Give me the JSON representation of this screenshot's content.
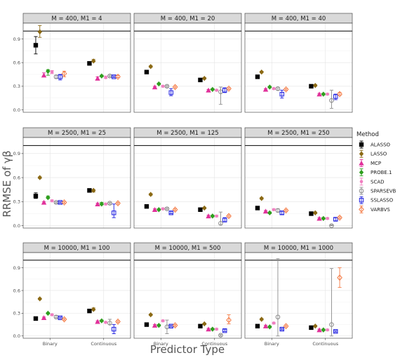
{
  "chart_data": {
    "type": "scatter",
    "subtype": "faceted point-range (point with error bars)",
    "xlabel": "Predictor Type",
    "ylabel": "RRMSE of γβ",
    "x_categories": [
      "Binary",
      "Continuous"
    ],
    "y_ticks": [
      "0.0",
      "0.3",
      "0.6",
      "0.9"
    ],
    "ylim": [
      -0.03,
      1.1
    ],
    "reference_line_y": 1.0,
    "grid": true,
    "legend_position": "right",
    "legend": {
      "title": "Method",
      "items": [
        {
          "name": "ALASSO",
          "color": "#000000",
          "shape": "square"
        },
        {
          "name": "LASSO",
          "color": "#8B6914",
          "shape": "diamond"
        },
        {
          "name": "MCP",
          "color": "#E0309A",
          "shape": "triangle"
        },
        {
          "name": "PROBE.1",
          "color": "#2E9E1E",
          "shape": "diamond"
        },
        {
          "name": "SCAD",
          "color": "#F07FC0",
          "shape": "dot"
        },
        {
          "name": "SPARSEVB",
          "color": "#8C8C8C",
          "shape": "circle-open"
        },
        {
          "name": "SSLASSO",
          "color": "#1C1CE0",
          "shape": "square-open"
        },
        {
          "name": "VARBVS",
          "color": "#F47A44",
          "shape": "diamond-open"
        }
      ]
    },
    "facets": [
      {
        "label": "M = 400, M1 = 4",
        "series": {
          "ALASSO": [
            [
              0.82,
              0.71,
              0.93
            ],
            [
              0.59,
              0.58,
              0.6
            ]
          ],
          "LASSO": [
            [
              0.99,
              0.92,
              1.07
            ],
            [
              0.62,
              0.61,
              0.64
            ]
          ],
          "MCP": [
            [
              0.44,
              0.42,
              0.47
            ],
            [
              0.4,
              0.38,
              0.42
            ]
          ],
          "PROBE.1": [
            [
              0.49,
              0.44,
              0.51
            ],
            [
              0.43,
              0.42,
              0.44
            ]
          ],
          "SCAD": [
            [
              0.48,
              0.46,
              0.5
            ],
            [
              0.41,
              0.4,
              0.43
            ]
          ],
          "SPARSEVB": [
            [
              0.42,
              0.4,
              0.44
            ],
            [
              0.43,
              0.42,
              0.44
            ]
          ],
          "SSLASSO": [
            [
              0.42,
              0.38,
              0.45
            ],
            [
              0.42,
              0.41,
              0.43
            ]
          ],
          "VARBVS": [
            [
              0.46,
              0.42,
              0.49
            ],
            [
              0.42,
              0.41,
              0.44
            ]
          ]
        }
      },
      {
        "label": "M = 400, M1 = 20",
        "series": {
          "ALASSO": [
            [
              0.48,
              0.46,
              0.5
            ],
            [
              0.38,
              0.37,
              0.39
            ]
          ],
          "LASSO": [
            [
              0.55,
              0.54,
              0.56
            ],
            [
              0.4,
              0.39,
              0.41
            ]
          ],
          "MCP": [
            [
              0.29,
              0.28,
              0.3
            ],
            [
              0.25,
              0.24,
              0.26
            ]
          ],
          "PROBE.1": [
            [
              0.33,
              0.32,
              0.34
            ],
            [
              0.26,
              0.25,
              0.27
            ]
          ],
          "SCAD": [
            [
              0.3,
              0.29,
              0.31
            ],
            [
              0.25,
              0.24,
              0.26
            ]
          ],
          "SPARSEVB": [
            [
              0.3,
              0.29,
              0.31
            ],
            [
              0.23,
              0.07,
              0.29
            ]
          ],
          "SSLASSO": [
            [
              0.22,
              0.18,
              0.27
            ],
            [
              0.25,
              0.22,
              0.28
            ]
          ],
          "VARBVS": [
            [
              0.29,
              0.28,
              0.3
            ],
            [
              0.27,
              0.26,
              0.28
            ]
          ]
        }
      },
      {
        "label": "M = 400, M1 = 40",
        "series": {
          "ALASSO": [
            [
              0.42,
              0.4,
              0.44
            ],
            [
              0.3,
              0.29,
              0.31
            ]
          ],
          "LASSO": [
            [
              0.48,
              0.47,
              0.49
            ],
            [
              0.31,
              0.3,
              0.32
            ]
          ],
          "MCP": [
            [
              0.26,
              0.25,
              0.27
            ],
            [
              0.2,
              0.19,
              0.21
            ]
          ],
          "PROBE.1": [
            [
              0.29,
              0.28,
              0.3
            ],
            [
              0.2,
              0.19,
              0.21
            ]
          ],
          "SCAD": [
            [
              0.27,
              0.26,
              0.28
            ],
            [
              0.2,
              0.19,
              0.21
            ]
          ],
          "SPARSEVB": [
            [
              0.27,
              0.25,
              0.28
            ],
            [
              0.12,
              0.02,
              0.25
            ]
          ],
          "SSLASSO": [
            [
              0.2,
              0.15,
              0.25
            ],
            [
              0.17,
              0.13,
              0.2
            ]
          ],
          "VARBVS": [
            [
              0.26,
              0.25,
              0.27
            ],
            [
              0.2,
              0.19,
              0.22
            ]
          ]
        }
      },
      {
        "label": "M = 2500, M1 = 25",
        "series": {
          "ALASSO": [
            [
              0.37,
              0.34,
              0.41
            ],
            [
              0.44,
              0.43,
              0.45
            ]
          ],
          "LASSO": [
            [
              0.6,
              0.59,
              0.61
            ],
            [
              0.44,
              0.42,
              0.45
            ]
          ],
          "MCP": [
            [
              0.29,
              0.28,
              0.3
            ],
            [
              0.27,
              0.26,
              0.28
            ]
          ],
          "PROBE.1": [
            [
              0.35,
              0.34,
              0.37
            ],
            [
              0.27,
              0.26,
              0.29
            ]
          ],
          "SCAD": [
            [
              0.31,
              0.3,
              0.32
            ],
            [
              0.27,
              0.26,
              0.28
            ]
          ],
          "SPARSEVB": [
            [
              0.29,
              0.28,
              0.3
            ],
            [
              0.28,
              0.27,
              0.29
            ]
          ],
          "SSLASSO": [
            [
              0.29,
              0.28,
              0.3
            ],
            [
              0.16,
              0.1,
              0.27
            ]
          ],
          "VARBVS": [
            [
              0.29,
              0.28,
              0.3
            ],
            [
              0.28,
              0.27,
              0.29
            ]
          ]
        }
      },
      {
        "label": "M = 2500, M1 = 125",
        "series": {
          "ALASSO": [
            [
              0.24,
              0.23,
              0.26
            ],
            [
              0.2,
              0.19,
              0.22
            ]
          ],
          "LASSO": [
            [
              0.39,
              0.38,
              0.4
            ],
            [
              0.22,
              0.21,
              0.23
            ]
          ],
          "MCP": [
            [
              0.2,
              0.19,
              0.21
            ],
            [
              0.12,
              0.11,
              0.13
            ]
          ],
          "PROBE.1": [
            [
              0.2,
              0.19,
              0.21
            ],
            [
              0.12,
              0.11,
              0.13
            ]
          ],
          "SCAD": [
            [
              0.21,
              0.2,
              0.22
            ],
            [
              0.12,
              0.11,
              0.13
            ]
          ],
          "SPARSEVB": [
            [
              0.21,
              0.2,
              0.22
            ],
            [
              0.03,
              0.01,
              0.17
            ]
          ],
          "SSLASSO": [
            [
              0.16,
              0.15,
              0.18
            ],
            [
              0.07,
              0.05,
              0.1
            ]
          ],
          "VARBVS": [
            [
              0.2,
              0.19,
              0.21
            ],
            [
              0.12,
              0.11,
              0.13
            ]
          ]
        }
      },
      {
        "label": "M = 2500, M1 = 250",
        "series": {
          "ALASSO": [
            [
              0.22,
              0.21,
              0.24
            ],
            [
              0.15,
              0.14,
              0.16
            ]
          ],
          "LASSO": [
            [
              0.34,
              0.33,
              0.35
            ],
            [
              0.16,
              0.15,
              0.17
            ]
          ],
          "MCP": [
            [
              0.18,
              0.17,
              0.19
            ],
            [
              0.09,
              0.08,
              0.1
            ]
          ],
          "PROBE.1": [
            [
              0.16,
              0.15,
              0.17
            ],
            [
              0.09,
              0.08,
              0.1
            ]
          ],
          "SCAD": [
            [
              0.2,
              0.19,
              0.21
            ],
            [
              0.09,
              0.08,
              0.1
            ]
          ],
          "SPARSEVB": [
            [
              0.19,
              0.17,
              0.21
            ],
            [
              0.0,
              0.0,
              0.01
            ]
          ],
          "SSLASSO": [
            [
              0.16,
              0.14,
              0.18
            ],
            [
              0.08,
              0.06,
              0.1
            ]
          ],
          "VARBVS": [
            [
              0.19,
              0.18,
              0.2
            ],
            [
              0.1,
              0.09,
              0.11
            ]
          ]
        }
      },
      {
        "label": "M = 10000, M1 = 100",
        "series": {
          "ALASSO": [
            [
              0.23,
              0.22,
              0.24
            ],
            [
              0.33,
              0.32,
              0.34
            ]
          ],
          "LASSO": [
            [
              0.49,
              0.48,
              0.5
            ],
            [
              0.35,
              0.34,
              0.37
            ]
          ],
          "MCP": [
            [
              0.24,
              0.23,
              0.25
            ],
            [
              0.19,
              0.18,
              0.2
            ]
          ],
          "PROBE.1": [
            [
              0.3,
              0.29,
              0.31
            ],
            [
              0.2,
              0.19,
              0.21
            ]
          ],
          "SCAD": [
            [
              0.28,
              0.27,
              0.29
            ],
            [
              0.18,
              0.17,
              0.19
            ]
          ],
          "SPARSEVB": [
            [
              0.25,
              0.24,
              0.27
            ],
            [
              0.17,
              0.15,
              0.22
            ]
          ],
          "SSLASSO": [
            [
              0.24,
              0.23,
              0.25
            ],
            [
              0.09,
              0.03,
              0.15
            ]
          ],
          "VARBVS": [
            [
              0.22,
              0.21,
              0.23
            ],
            [
              0.19,
              0.18,
              0.2
            ]
          ]
        }
      },
      {
        "label": "M = 10000, M1 = 500",
        "series": {
          "ALASSO": [
            [
              0.15,
              0.14,
              0.16
            ],
            [
              0.13,
              0.12,
              0.14
            ]
          ],
          "LASSO": [
            [
              0.28,
              0.27,
              0.29
            ],
            [
              0.16,
              0.15,
              0.17
            ]
          ],
          "MCP": [
            [
              0.14,
              0.13,
              0.15
            ],
            [
              0.09,
              0.08,
              0.1
            ]
          ],
          "PROBE.1": [
            [
              0.14,
              0.13,
              0.15
            ],
            [
              0.09,
              0.08,
              0.1
            ]
          ],
          "SCAD": [
            [
              0.2,
              0.19,
              0.21
            ],
            [
              0.09,
              0.08,
              0.1
            ]
          ],
          "SPARSEVB": [
            [
              0.12,
              0.03,
              0.21
            ],
            [
              0.01,
              0.0,
              0.02
            ]
          ],
          "SSLASSO": [
            [
              0.13,
              0.12,
              0.14
            ],
            [
              0.07,
              0.06,
              0.09
            ]
          ],
          "VARBVS": [
            [
              0.14,
              0.13,
              0.15
            ],
            [
              0.21,
              0.16,
              0.28
            ]
          ]
        }
      },
      {
        "label": "M = 10000, M1 = 1000",
        "series": {
          "ALASSO": [
            [
              0.13,
              0.12,
              0.14
            ],
            [
              0.11,
              0.1,
              0.12
            ]
          ],
          "LASSO": [
            [
              0.22,
              0.21,
              0.23
            ],
            [
              0.13,
              0.12,
              0.14
            ]
          ],
          "MCP": [
            [
              0.13,
              0.12,
              0.14
            ],
            [
              0.08,
              0.07,
              0.09
            ]
          ],
          "PROBE.1": [
            [
              0.12,
              0.11,
              0.13
            ],
            [
              0.08,
              0.07,
              0.09
            ]
          ],
          "SCAD": [
            [
              0.17,
              0.16,
              0.18
            ],
            [
              0.08,
              0.07,
              0.09
            ]
          ],
          "SPARSEVB": [
            [
              0.25,
              0.0,
              1.02
            ],
            [
              0.15,
              0.0,
              0.89
            ]
          ],
          "SSLASSO": [
            [
              0.09,
              0.08,
              0.1
            ],
            [
              0.06,
              0.05,
              0.07
            ]
          ],
          "VARBVS": [
            [
              0.13,
              0.12,
              0.14
            ],
            [
              0.77,
              0.64,
              0.9
            ]
          ]
        }
      }
    ]
  }
}
